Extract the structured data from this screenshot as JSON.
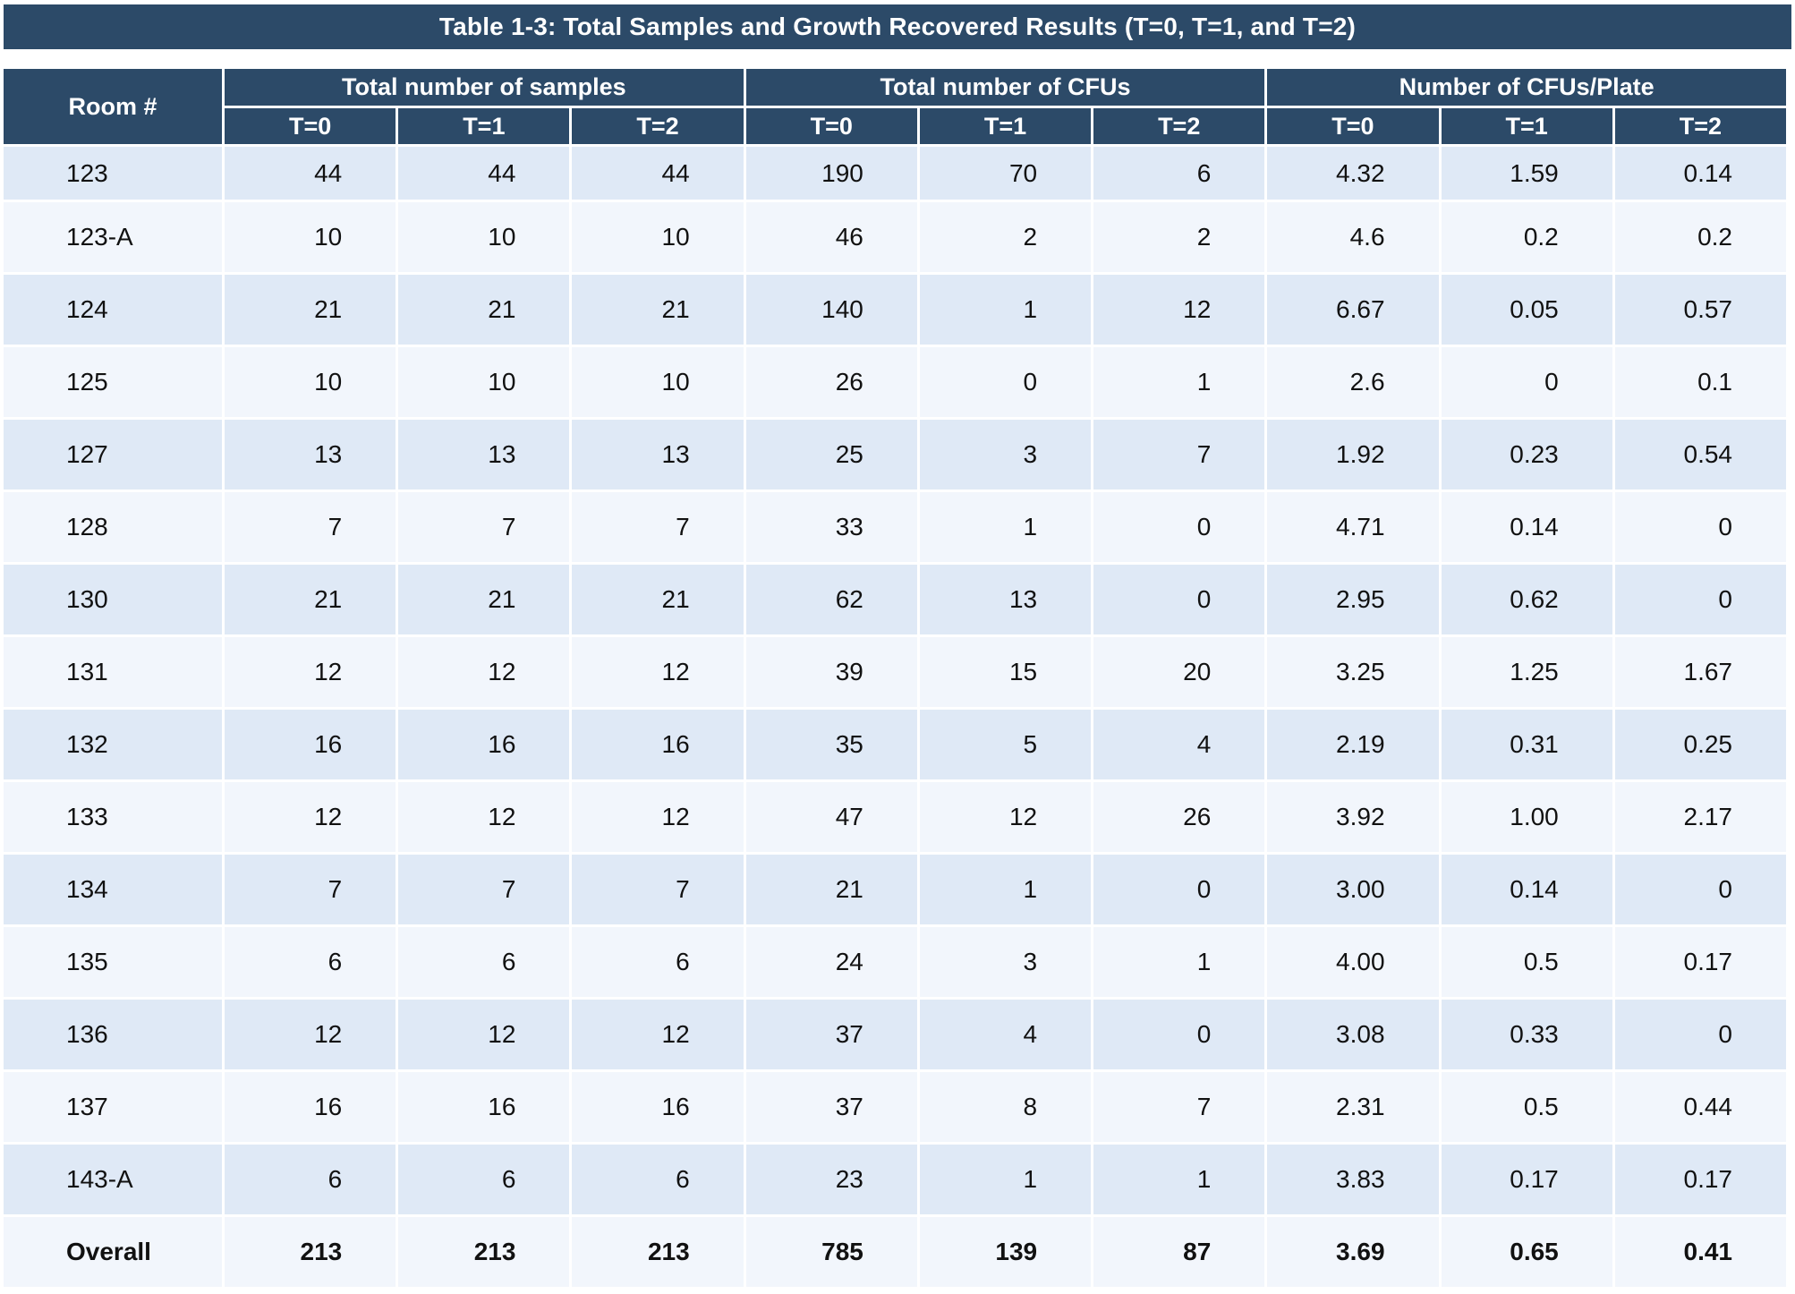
{
  "title": "Table 1-3: Total Samples and Growth Recovered Results (T=0, T=1, and T=2)",
  "header": {
    "room": "Room #",
    "groups": [
      "Total number of samples",
      "Total number of CFUs",
      "Number of CFUs/Plate"
    ],
    "subheaders": [
      "T=0",
      "T=1",
      "T=2",
      "T=0",
      "T=1",
      "T=2",
      "T=0",
      "T=1",
      "T=2"
    ]
  },
  "rows": [
    [
      "123",
      "44",
      "44",
      "44",
      "190",
      "70",
      "6",
      "4.32",
      "1.59",
      "0.14"
    ],
    [
      "123-A",
      "10",
      "10",
      "10",
      "46",
      "2",
      "2",
      "4.6",
      "0.2",
      "0.2"
    ],
    [
      "124",
      "21",
      "21",
      "21",
      "140",
      "1",
      "12",
      "6.67",
      "0.05",
      "0.57"
    ],
    [
      "125",
      "10",
      "10",
      "10",
      "26",
      "0",
      "1",
      "2.6",
      "0",
      "0.1"
    ],
    [
      "127",
      "13",
      "13",
      "13",
      "25",
      "3",
      "7",
      "1.92",
      "0.23",
      "0.54"
    ],
    [
      "128",
      "7",
      "7",
      "7",
      "33",
      "1",
      "0",
      "4.71",
      "0.14",
      "0"
    ],
    [
      "130",
      "21",
      "21",
      "21",
      "62",
      "13",
      "0",
      "2.95",
      "0.62",
      "0"
    ],
    [
      "131",
      "12",
      "12",
      "12",
      "39",
      "15",
      "20",
      "3.25",
      "1.25",
      "1.67"
    ],
    [
      "132",
      "16",
      "16",
      "16",
      "35",
      "5",
      "4",
      "2.19",
      "0.31",
      "0.25"
    ],
    [
      "133",
      "12",
      "12",
      "12",
      "47",
      "12",
      "26",
      "3.92",
      "1.00",
      "2.17"
    ],
    [
      "134",
      "7",
      "7",
      "7",
      "21",
      "1",
      "0",
      "3.00",
      "0.14",
      "0"
    ],
    [
      "135",
      "6",
      "6",
      "6",
      "24",
      "3",
      "1",
      "4.00",
      "0.5",
      "0.17"
    ],
    [
      "136",
      "12",
      "12",
      "12",
      "37",
      "4",
      "0",
      "3.08",
      "0.33",
      "0"
    ],
    [
      "137",
      "16",
      "16",
      "16",
      "37",
      "8",
      "7",
      "2.31",
      "0.5",
      "0.44"
    ],
    [
      "143-A",
      "6",
      "6",
      "6",
      "23",
      "1",
      "1",
      "3.83",
      "0.17",
      "0.17"
    ]
  ],
  "total": [
    "Overall",
    "213",
    "213",
    "213",
    "785",
    "139",
    "87",
    "3.69",
    "0.65",
    "0.41"
  ],
  "colors": {
    "header_bg": "#2c4a68",
    "row_odd": "#dfe9f6",
    "row_even": "#f2f6fc"
  }
}
